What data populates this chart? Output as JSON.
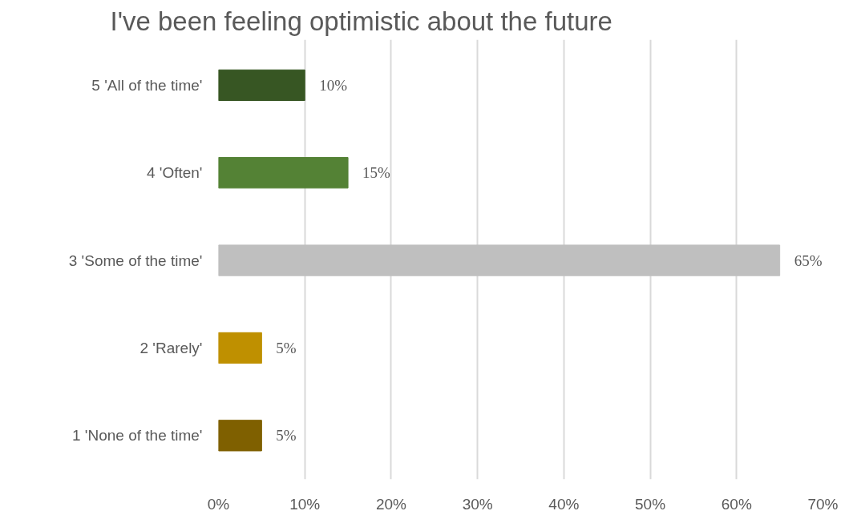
{
  "chart_data": {
    "type": "bar",
    "orientation": "horizontal",
    "title": "I've been feeling optimistic about the future",
    "categories": [
      "5 'All of the time'",
      "4 'Often'",
      "3 'Some of the time'",
      "2 'Rarely'",
      "1 'None of the time'"
    ],
    "values": [
      10,
      15,
      65,
      5,
      5
    ],
    "colors": [
      "#375623",
      "#548235",
      "#bfbfbf",
      "#bf9000",
      "#7f6000"
    ],
    "value_labels": [
      "10%",
      "15%",
      "65%",
      "5%",
      "5%"
    ],
    "xlim": [
      0,
      70
    ],
    "xticks": [
      {
        "value": 0,
        "label": "0%"
      },
      {
        "value": 10,
        "label": "10%"
      },
      {
        "value": 20,
        "label": "20%"
      },
      {
        "value": 30,
        "label": "30%"
      },
      {
        "value": 40,
        "label": "40%"
      },
      {
        "value": 50,
        "label": "50%"
      },
      {
        "value": 60,
        "label": "60%"
      },
      {
        "value": 70,
        "label": "70%"
      }
    ],
    "grid": "x"
  }
}
